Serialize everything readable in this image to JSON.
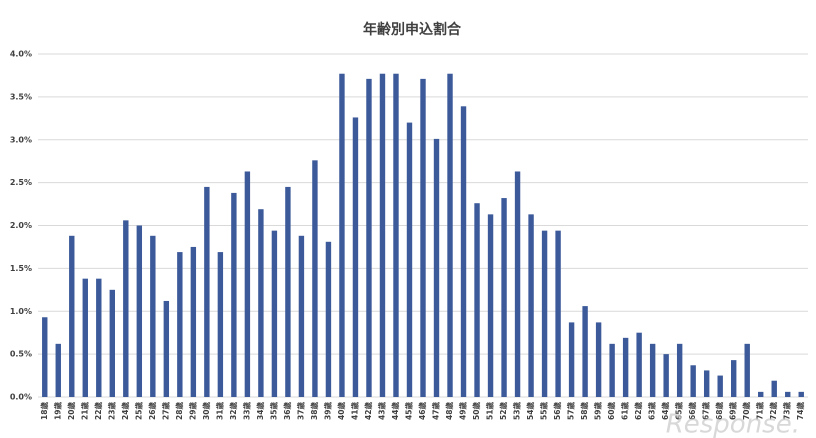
{
  "chart_data": {
    "type": "bar",
    "title": "年齢別申込割合",
    "categories": [
      "18歳",
      "19歳",
      "20歳",
      "21歳",
      "22歳",
      "23歳",
      "24歳",
      "25歳",
      "26歳",
      "27歳",
      "28歳",
      "29歳",
      "30歳",
      "31歳",
      "32歳",
      "33歳",
      "34歳",
      "35歳",
      "36歳",
      "37歳",
      "38歳",
      "39歳",
      "40歳",
      "41歳",
      "42歳",
      "43歳",
      "44歳",
      "45歳",
      "46歳",
      "47歳",
      "48歳",
      "49歳",
      "50歳",
      "51歳",
      "52歳",
      "53歳",
      "54歳",
      "55歳",
      "56歳",
      "57歳",
      "58歳",
      "59歳",
      "60歳",
      "61歳",
      "62歳",
      "63歳",
      "64歳",
      "65歳",
      "66歳",
      "67歳",
      "68歳",
      "69歳",
      "70歳",
      "71歳",
      "72歳",
      "73歳",
      "74歳"
    ],
    "values": [
      0.93,
      0.62,
      1.88,
      1.38,
      1.38,
      1.25,
      2.06,
      2.0,
      1.88,
      1.12,
      1.69,
      1.75,
      2.45,
      1.69,
      2.38,
      2.63,
      2.19,
      1.94,
      2.45,
      1.88,
      2.76,
      1.81,
      3.77,
      3.26,
      3.71,
      3.77,
      3.77,
      3.2,
      3.71,
      3.01,
      3.77,
      3.39,
      2.26,
      2.13,
      2.32,
      2.63,
      2.13,
      1.94,
      1.94,
      0.87,
      1.06,
      0.87,
      0.62,
      0.69,
      0.75,
      0.62,
      0.5,
      0.62,
      0.37,
      0.31,
      0.25,
      0.43,
      0.62,
      0.06,
      0.19,
      0.06,
      0.06
    ],
    "color": "#3c5a9a",
    "ylim": [
      0,
      4.0
    ],
    "yticks": [
      {
        "value": 0,
        "label": "0.0%"
      },
      {
        "value": 0.5,
        "label": "0.5%"
      },
      {
        "value": 1.0,
        "label": "1.0%"
      },
      {
        "value": 1.5,
        "label": "1.5%"
      },
      {
        "value": 2.0,
        "label": "2.0%"
      },
      {
        "value": 2.5,
        "label": "2.5%"
      },
      {
        "value": 3.0,
        "label": "3.0%"
      },
      {
        "value": 3.5,
        "label": "3.5%"
      },
      {
        "value": 4.0,
        "label": "4.0%"
      }
    ],
    "grid": true,
    "watermark": "Response."
  }
}
